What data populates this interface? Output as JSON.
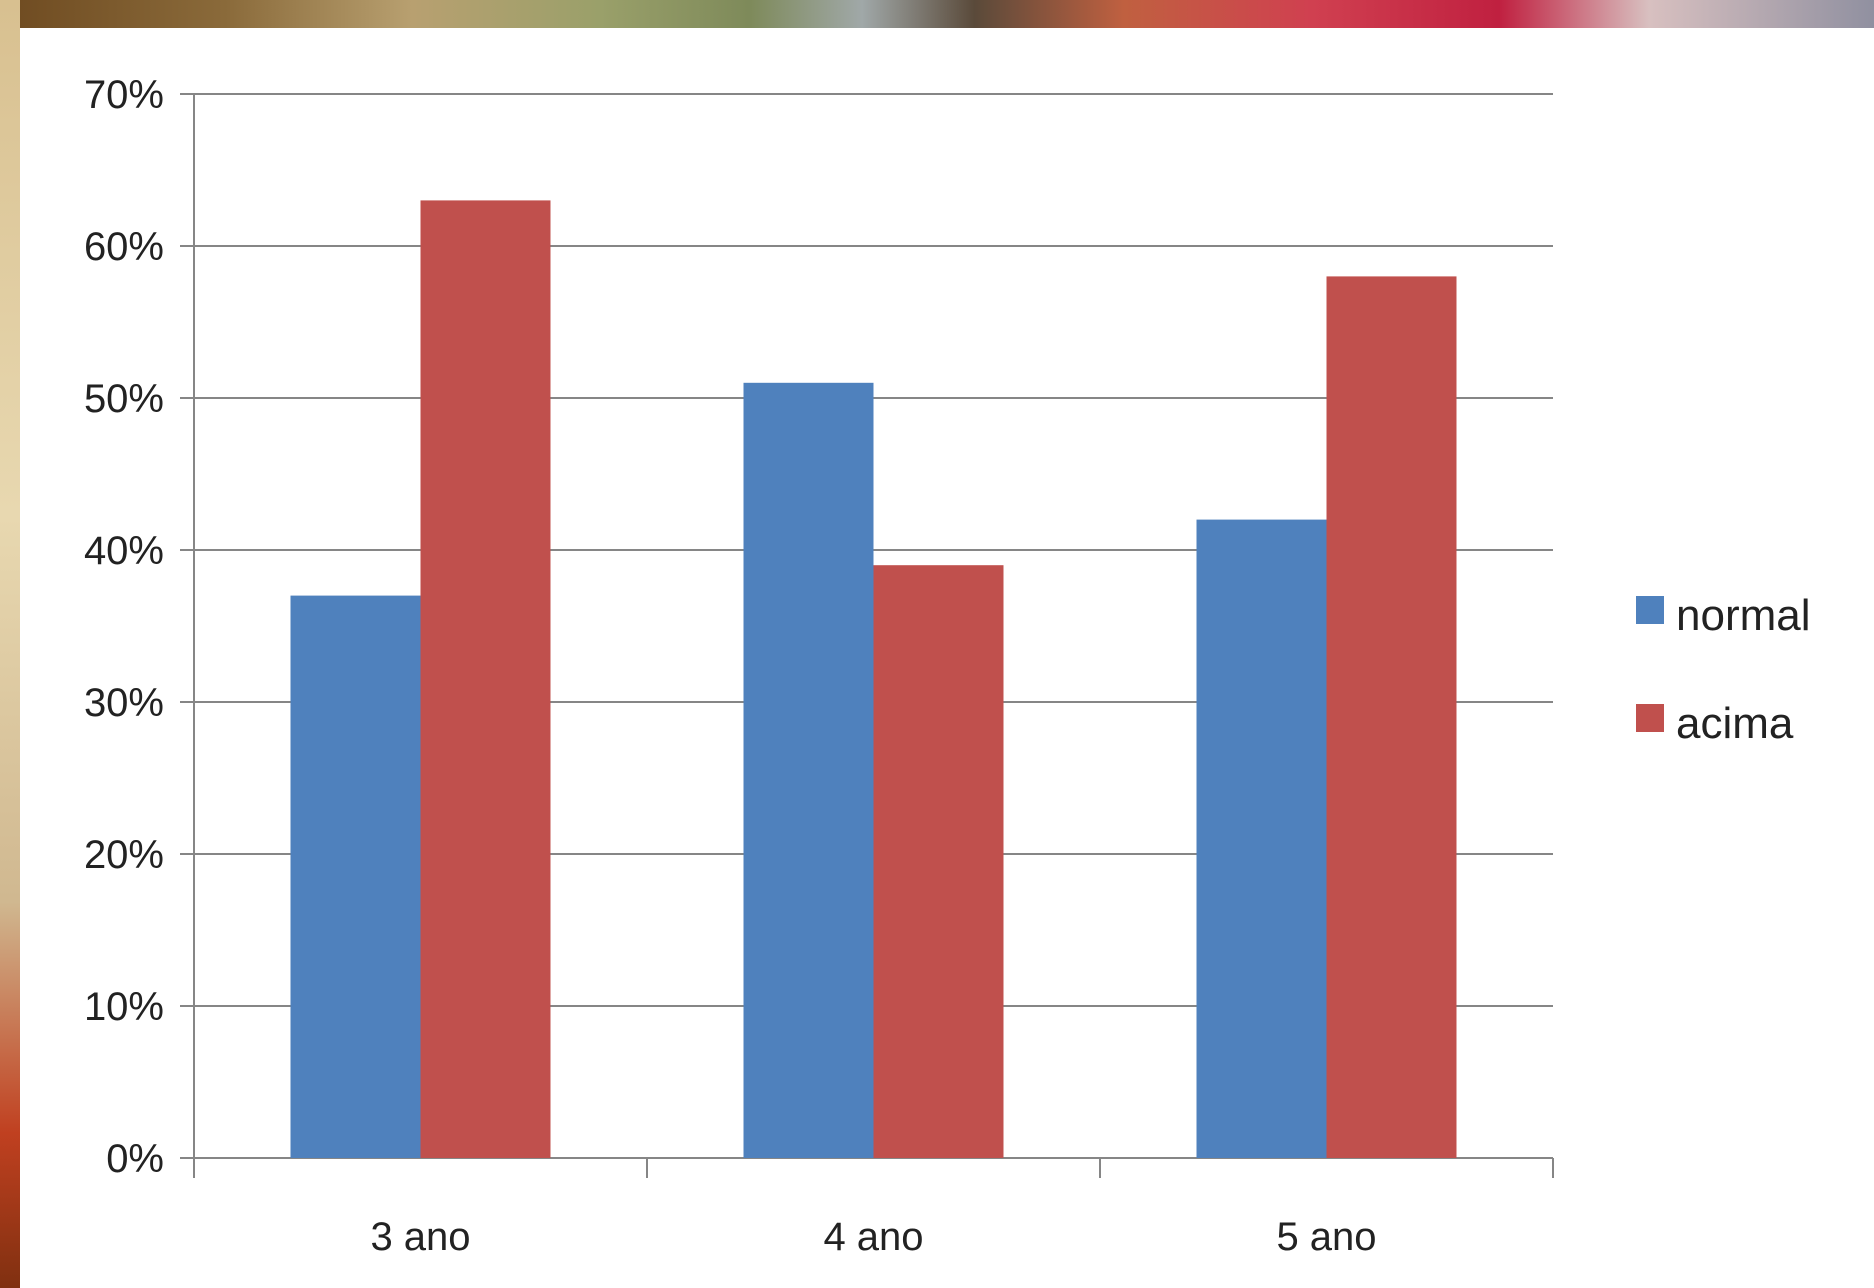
{
  "chart_data": {
    "type": "bar",
    "categories": [
      "3 ano",
      "4 ano",
      "5 ano"
    ],
    "series": [
      {
        "name": "normal",
        "values": [
          37,
          51,
          42
        ],
        "color": "#4f81bd"
      },
      {
        "name": "acima",
        "values": [
          63,
          39,
          58
        ],
        "color": "#c0504d"
      }
    ],
    "yticks": [
      "0%",
      "10%",
      "20%",
      "30%",
      "40%",
      "50%",
      "60%",
      "70%"
    ],
    "ylim": [
      0,
      70
    ],
    "grid": true,
    "legend": "right"
  }
}
